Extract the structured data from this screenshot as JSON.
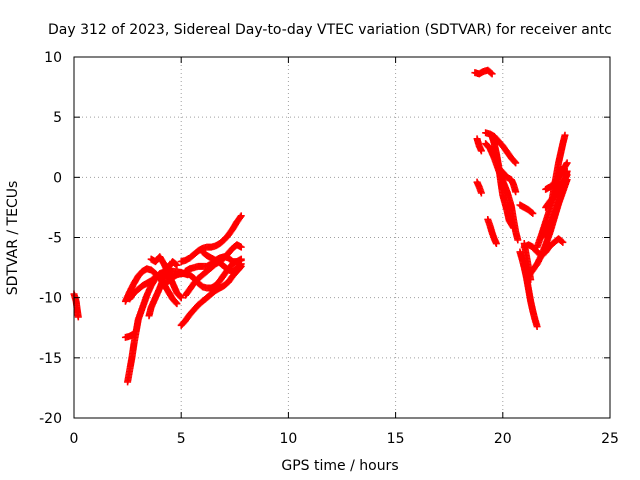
{
  "chart_data": {
    "type": "scatter",
    "title": "Day 312 of 2023, Sidereal Day-to-day VTEC variation (SDTVAR) for receiver antc",
    "xlabel": "GPS time / hours",
    "ylabel": "SDTVAR / TECUs",
    "xlim": [
      0,
      25
    ],
    "ylim": [
      -20,
      10
    ],
    "xticks": [
      0,
      5,
      10,
      15,
      20,
      25
    ],
    "yticks": [
      -20,
      -15,
      -10,
      -5,
      0,
      5,
      10
    ],
    "grid": true,
    "marker": "plus",
    "color": "#ff0000",
    "series": [
      {
        "segments": [
          [
            [
              0.0,
              -9.7
            ],
            [
              0.1,
              -10.3
            ],
            [
              0.15,
              -11.0
            ],
            [
              0.2,
              -11.6
            ]
          ],
          [
            [
              2.5,
              -17.0
            ],
            [
              2.6,
              -16.0
            ],
            [
              2.7,
              -15.0
            ],
            [
              2.8,
              -13.8
            ],
            [
              2.9,
              -12.8
            ],
            [
              3.0,
              -11.8
            ],
            [
              3.2,
              -10.8
            ],
            [
              3.4,
              -9.8
            ],
            [
              3.6,
              -9.0
            ],
            [
              3.8,
              -8.4
            ],
            [
              4.0,
              -8.0
            ],
            [
              4.3,
              -7.8
            ],
            [
              4.6,
              -7.8
            ],
            [
              5.0,
              -7.9
            ],
            [
              5.3,
              -8.1
            ]
          ],
          [
            [
              2.4,
              -13.3
            ],
            [
              2.6,
              -13.2
            ],
            [
              2.8,
              -13.0
            ]
          ],
          [
            [
              2.4,
              -10.3
            ],
            [
              2.6,
              -9.5
            ],
            [
              2.8,
              -8.8
            ],
            [
              3.0,
              -8.2
            ],
            [
              3.2,
              -7.8
            ],
            [
              3.4,
              -7.6
            ],
            [
              3.6,
              -7.7
            ],
            [
              3.8,
              -8.0
            ],
            [
              4.0,
              -8.4
            ],
            [
              4.2,
              -8.9
            ],
            [
              4.4,
              -9.5
            ],
            [
              4.6,
              -10.1
            ],
            [
              4.8,
              -10.5
            ]
          ],
          [
            [
              2.6,
              -10.1
            ],
            [
              2.8,
              -9.6
            ],
            [
              3.0,
              -9.3
            ],
            [
              3.2,
              -9.0
            ],
            [
              3.4,
              -8.8
            ],
            [
              3.6,
              -8.6
            ],
            [
              3.8,
              -8.3
            ]
          ],
          [
            [
              3.5,
              -11.5
            ],
            [
              3.6,
              -10.8
            ],
            [
              3.8,
              -10.0
            ],
            [
              4.0,
              -9.2
            ],
            [
              4.2,
              -8.3
            ],
            [
              4.4,
              -7.5
            ],
            [
              4.6,
              -7.0
            ],
            [
              4.8,
              -7.3
            ]
          ],
          [
            [
              3.6,
              -6.8
            ],
            [
              3.8,
              -7.0
            ],
            [
              4.0,
              -6.6
            ],
            [
              4.2,
              -7.2
            ],
            [
              4.4,
              -8.0
            ],
            [
              4.6,
              -8.8
            ],
            [
              4.8,
              -9.6
            ],
            [
              5.0,
              -10.0
            ]
          ],
          [
            [
              4.2,
              -9.0
            ],
            [
              4.4,
              -8.6
            ],
            [
              4.6,
              -8.3
            ],
            [
              4.8,
              -8.1
            ],
            [
              5.0,
              -8.0
            ],
            [
              5.2,
              -8.0
            ],
            [
              5.4,
              -8.1
            ],
            [
              5.6,
              -8.4
            ],
            [
              5.8,
              -8.8
            ],
            [
              6.0,
              -9.1
            ],
            [
              6.2,
              -9.2
            ],
            [
              6.4,
              -9.2
            ],
            [
              6.6,
              -9.0
            ],
            [
              6.8,
              -8.6
            ],
            [
              7.0,
              -8.1
            ],
            [
              7.2,
              -7.6
            ],
            [
              7.4,
              -7.2
            ],
            [
              7.6,
              -7.0
            ],
            [
              7.8,
              -6.9
            ]
          ],
          [
            [
              5.0,
              -7.0
            ],
            [
              5.2,
              -6.9
            ],
            [
              5.4,
              -6.7
            ],
            [
              5.6,
              -6.4
            ],
            [
              5.8,
              -6.1
            ],
            [
              6.0,
              -5.9
            ],
            [
              6.2,
              -5.8
            ],
            [
              6.4,
              -5.8
            ],
            [
              6.6,
              -5.7
            ],
            [
              6.8,
              -5.5
            ],
            [
              7.0,
              -5.2
            ],
            [
              7.2,
              -4.8
            ],
            [
              7.4,
              -4.3
            ],
            [
              7.6,
              -3.7
            ],
            [
              7.8,
              -3.2
            ]
          ],
          [
            [
              5.2,
              -7.8
            ],
            [
              5.4,
              -7.6
            ],
            [
              5.6,
              -7.5
            ],
            [
              5.8,
              -7.4
            ],
            [
              6.0,
              -7.4
            ],
            [
              6.2,
              -7.4
            ],
            [
              6.4,
              -7.2
            ],
            [
              6.6,
              -6.9
            ],
            [
              6.8,
              -6.7
            ],
            [
              7.0,
              -6.6
            ],
            [
              7.2,
              -6.7
            ],
            [
              7.4,
              -7.0
            ],
            [
              7.6,
              -7.0
            ],
            [
              7.8,
              -6.8
            ]
          ],
          [
            [
              5.2,
              -9.8
            ],
            [
              5.4,
              -9.3
            ],
            [
              5.6,
              -8.8
            ],
            [
              5.8,
              -8.4
            ],
            [
              6.0,
              -8.1
            ],
            [
              6.2,
              -7.8
            ],
            [
              6.4,
              -7.5
            ],
            [
              6.6,
              -7.2
            ],
            [
              6.8,
              -7.0
            ],
            [
              7.0,
              -6.7
            ],
            [
              7.2,
              -6.3
            ],
            [
              7.4,
              -5.9
            ],
            [
              7.6,
              -5.6
            ],
            [
              7.8,
              -5.8
            ]
          ],
          [
            [
              5.0,
              -12.3
            ],
            [
              5.2,
              -11.9
            ],
            [
              5.4,
              -11.4
            ],
            [
              5.6,
              -11.0
            ],
            [
              5.8,
              -10.6
            ],
            [
              6.0,
              -10.3
            ],
            [
              6.2,
              -10.0
            ],
            [
              6.4,
              -9.7
            ],
            [
              6.6,
              -9.4
            ],
            [
              6.8,
              -9.2
            ],
            [
              7.0,
              -9.0
            ],
            [
              7.2,
              -8.7
            ],
            [
              7.4,
              -8.2
            ],
            [
              7.6,
              -7.8
            ],
            [
              7.8,
              -7.4
            ]
          ],
          [
            [
              6.0,
              -6.2
            ],
            [
              6.2,
              -6.5
            ],
            [
              6.4,
              -6.7
            ],
            [
              6.6,
              -6.9
            ],
            [
              6.8,
              -7.1
            ],
            [
              7.0,
              -7.4
            ],
            [
              7.2,
              -7.7
            ],
            [
              7.4,
              -7.8
            ],
            [
              7.6,
              -7.6
            ],
            [
              7.8,
              -7.2
            ]
          ],
          [
            [
              18.7,
              8.7
            ],
            [
              18.9,
              8.6
            ],
            [
              19.1,
              8.8
            ],
            [
              19.3,
              8.9
            ],
            [
              19.5,
              8.6
            ]
          ],
          [
            [
              18.8,
              3.2
            ],
            [
              18.9,
              2.6
            ],
            [
              19.0,
              2.2
            ]
          ],
          [
            [
              18.8,
              -0.4
            ],
            [
              18.9,
              -0.8
            ],
            [
              19.0,
              -1.3
            ]
          ],
          [
            [
              19.3,
              -3.5
            ],
            [
              19.4,
              -4.0
            ],
            [
              19.5,
              -4.6
            ],
            [
              19.6,
              -5.1
            ],
            [
              19.7,
              -5.5
            ]
          ],
          [
            [
              19.2,
              3.7
            ],
            [
              19.4,
              3.6
            ],
            [
              19.6,
              3.4
            ],
            [
              19.8,
              3.0
            ],
            [
              20.0,
              2.6
            ],
            [
              20.2,
              2.1
            ],
            [
              20.4,
              1.6
            ],
            [
              20.6,
              1.2
            ]
          ],
          [
            [
              19.2,
              2.8
            ],
            [
              19.4,
              2.4
            ],
            [
              19.6,
              1.6
            ],
            [
              19.8,
              0.6
            ],
            [
              20.0,
              -0.3
            ],
            [
              20.2,
              -1.2
            ],
            [
              20.4,
              -2.4
            ],
            [
              20.5,
              -3.5
            ],
            [
              20.6,
              -4.5
            ],
            [
              20.7,
              -5.2
            ]
          ],
          [
            [
              19.5,
              3.4
            ],
            [
              19.6,
              2.8
            ],
            [
              19.7,
              2.0
            ],
            [
              19.8,
              1.0
            ],
            [
              19.9,
              -0.3
            ],
            [
              20.0,
              -1.5
            ],
            [
              20.2,
              -2.8
            ],
            [
              20.3,
              -3.6
            ],
            [
              20.5,
              -4.2
            ]
          ],
          [
            [
              19.8,
              0.8
            ],
            [
              20.0,
              0.4
            ],
            [
              20.2,
              0.0
            ],
            [
              20.4,
              -0.2
            ],
            [
              20.5,
              -0.6
            ],
            [
              20.6,
              -1.2
            ]
          ],
          [
            [
              20.8,
              -2.3
            ],
            [
              21.0,
              -2.5
            ],
            [
              21.2,
              -2.7
            ],
            [
              21.4,
              -3.0
            ]
          ],
          [
            [
              20.8,
              -6.2
            ],
            [
              20.9,
              -6.8
            ],
            [
              21.0,
              -7.5
            ],
            [
              21.1,
              -8.3
            ],
            [
              21.2,
              -9.3
            ],
            [
              21.3,
              -10.3
            ],
            [
              21.4,
              -11.1
            ],
            [
              21.5,
              -11.8
            ],
            [
              21.6,
              -12.4
            ]
          ],
          [
            [
              21.0,
              -5.8
            ],
            [
              21.2,
              -5.6
            ],
            [
              21.4,
              -5.8
            ],
            [
              21.6,
              -6.2
            ],
            [
              21.8,
              -6.5
            ],
            [
              22.0,
              -6.2
            ],
            [
              22.2,
              -5.7
            ],
            [
              22.4,
              -5.4
            ],
            [
              22.6,
              -5.1
            ],
            [
              22.8,
              -5.4
            ]
          ],
          [
            [
              21.0,
              -5.5
            ],
            [
              21.1,
              -6.5
            ],
            [
              21.2,
              -7.5
            ],
            [
              21.3,
              -8.5
            ]
          ],
          [
            [
              21.2,
              -8.2
            ],
            [
              21.4,
              -7.7
            ],
            [
              21.6,
              -7.2
            ],
            [
              21.8,
              -6.5
            ],
            [
              22.0,
              -5.6
            ],
            [
              22.2,
              -4.6
            ],
            [
              22.4,
              -3.4
            ],
            [
              22.6,
              -2.2
            ],
            [
              22.8,
              -1.0
            ],
            [
              23.0,
              0.5
            ]
          ],
          [
            [
              21.6,
              -5.8
            ],
            [
              21.8,
              -4.8
            ],
            [
              22.0,
              -3.7
            ],
            [
              22.2,
              -2.6
            ],
            [
              22.4,
              -1.6
            ],
            [
              22.5,
              -0.8
            ],
            [
              22.6,
              0.0
            ],
            [
              22.7,
              0.7
            ]
          ],
          [
            [
              22.0,
              -1.0
            ],
            [
              22.2,
              -0.8
            ],
            [
              22.4,
              -0.5
            ],
            [
              22.6,
              0.0
            ],
            [
              22.8,
              0.6
            ],
            [
              23.0,
              1.2
            ]
          ],
          [
            [
              22.0,
              -2.5
            ],
            [
              22.2,
              -2.0
            ],
            [
              22.4,
              -1.6
            ],
            [
              22.6,
              -1.2
            ],
            [
              22.8,
              -0.5
            ],
            [
              23.0,
              0.2
            ]
          ],
          [
            [
              22.3,
              -1.8
            ],
            [
              22.4,
              -0.8
            ],
            [
              22.5,
              0.2
            ],
            [
              22.6,
              1.2
            ],
            [
              22.7,
              2.0
            ],
            [
              22.8,
              2.8
            ],
            [
              22.9,
              3.5
            ]
          ],
          [
            [
              21.8,
              -5.0
            ],
            [
              22.0,
              -4.5
            ],
            [
              22.2,
              -4.0
            ],
            [
              22.4,
              -3.2
            ],
            [
              22.6,
              -2.2
            ],
            [
              22.8,
              -1.2
            ],
            [
              23.0,
              -0.2
            ]
          ]
        ]
      }
    ]
  }
}
